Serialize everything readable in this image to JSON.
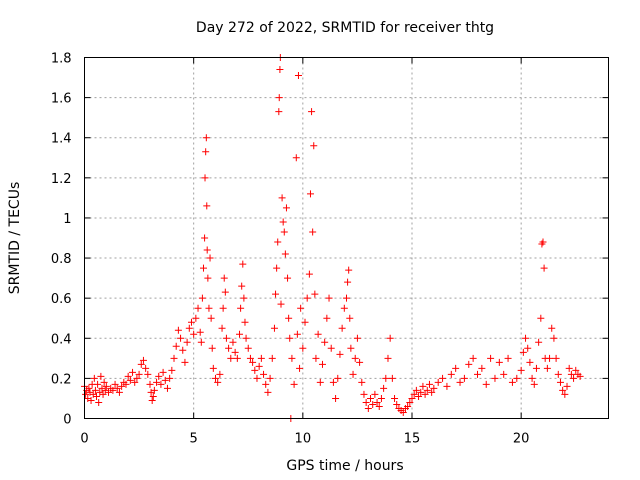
{
  "chart_data": {
    "type": "scatter",
    "title": "Day 272 of 2022, SRMTID for receiver thtg",
    "xlabel": "GPS time / hours",
    "ylabel": "SRMTID / TECUs",
    "xlim": [
      0,
      24
    ],
    "ylim": [
      0,
      1.8
    ],
    "xticks": [
      0,
      5,
      10,
      15,
      20
    ],
    "yticks": [
      0,
      0.2,
      0.4,
      0.6,
      0.8,
      1,
      1.2,
      1.4,
      1.6,
      1.8
    ],
    "xtick_labels": [
      "0",
      "5",
      "10",
      "15",
      "20"
    ],
    "ytick_labels": [
      "0",
      "0.2",
      "0.4",
      "0.6",
      "0.8",
      "1",
      "1.2",
      "1.4",
      "1.6",
      "1.8"
    ],
    "grid": true,
    "marker": "plus",
    "color": "#ff0000",
    "series": [
      {
        "name": "SRMTID",
        "points": [
          [
            0.0,
            0.16
          ],
          [
            0.05,
            0.12
          ],
          [
            0.1,
            0.14
          ],
          [
            0.15,
            0.1
          ],
          [
            0.2,
            0.15
          ],
          [
            0.25,
            0.13
          ],
          [
            0.3,
            0.09
          ],
          [
            0.35,
            0.17
          ],
          [
            0.4,
            0.12
          ],
          [
            0.45,
            0.2
          ],
          [
            0.5,
            0.14
          ],
          [
            0.55,
            0.11
          ],
          [
            0.6,
            0.17
          ],
          [
            0.65,
            0.08
          ],
          [
            0.7,
            0.13
          ],
          [
            0.75,
            0.21
          ],
          [
            0.8,
            0.15
          ],
          [
            0.85,
            0.12
          ],
          [
            0.9,
            0.18
          ],
          [
            0.95,
            0.14
          ],
          [
            1.0,
            0.16
          ],
          [
            1.1,
            0.13
          ],
          [
            1.2,
            0.15
          ],
          [
            1.3,
            0.14
          ],
          [
            1.4,
            0.17
          ],
          [
            1.5,
            0.15
          ],
          [
            1.6,
            0.13
          ],
          [
            1.7,
            0.16
          ],
          [
            1.8,
            0.18
          ],
          [
            1.9,
            0.17
          ],
          [
            2.0,
            0.21
          ],
          [
            2.1,
            0.19
          ],
          [
            2.2,
            0.23
          ],
          [
            2.3,
            0.18
          ],
          [
            2.4,
            0.2
          ],
          [
            2.5,
            0.22
          ],
          [
            2.6,
            0.27
          ],
          [
            2.7,
            0.29
          ],
          [
            2.8,
            0.25
          ],
          [
            2.9,
            0.22
          ],
          [
            3.0,
            0.17
          ],
          [
            3.05,
            0.13
          ],
          [
            3.1,
            0.09
          ],
          [
            3.15,
            0.11
          ],
          [
            3.2,
            0.14
          ],
          [
            3.3,
            0.18
          ],
          [
            3.4,
            0.21
          ],
          [
            3.5,
            0.17
          ],
          [
            3.6,
            0.23
          ],
          [
            3.7,
            0.19
          ],
          [
            3.8,
            0.15
          ],
          [
            3.9,
            0.2
          ],
          [
            4.0,
            0.24
          ],
          [
            4.1,
            0.3
          ],
          [
            4.2,
            0.36
          ],
          [
            4.3,
            0.44
          ],
          [
            4.4,
            0.4
          ],
          [
            4.5,
            0.34
          ],
          [
            4.6,
            0.28
          ],
          [
            4.7,
            0.38
          ],
          [
            4.8,
            0.45
          ],
          [
            4.9,
            0.48
          ],
          [
            5.0,
            0.42
          ],
          [
            5.1,
            0.5
          ],
          [
            5.2,
            0.55
          ],
          [
            5.3,
            0.43
          ],
          [
            5.35,
            0.38
          ],
          [
            5.4,
            0.6
          ],
          [
            5.45,
            0.75
          ],
          [
            5.5,
            0.9
          ],
          [
            5.52,
            1.2
          ],
          [
            5.55,
            1.33
          ],
          [
            5.58,
            1.4
          ],
          [
            5.6,
            1.06
          ],
          [
            5.62,
            0.84
          ],
          [
            5.65,
            0.7
          ],
          [
            5.7,
            0.55
          ],
          [
            5.75,
            0.8
          ],
          [
            5.8,
            0.5
          ],
          [
            5.85,
            0.35
          ],
          [
            5.9,
            0.25
          ],
          [
            6.0,
            0.2
          ],
          [
            6.1,
            0.18
          ],
          [
            6.2,
            0.22
          ],
          [
            6.3,
            0.45
          ],
          [
            6.35,
            0.55
          ],
          [
            6.4,
            0.7
          ],
          [
            6.45,
            0.63
          ],
          [
            6.5,
            0.4
          ],
          [
            6.6,
            0.35
          ],
          [
            6.7,
            0.3
          ],
          [
            6.8,
            0.38
          ],
          [
            6.9,
            0.33
          ],
          [
            7.0,
            0.3
          ],
          [
            7.1,
            0.42
          ],
          [
            7.15,
            0.55
          ],
          [
            7.2,
            0.66
          ],
          [
            7.25,
            0.77
          ],
          [
            7.3,
            0.6
          ],
          [
            7.35,
            0.48
          ],
          [
            7.4,
            0.4
          ],
          [
            7.5,
            0.35
          ],
          [
            7.6,
            0.3
          ],
          [
            7.7,
            0.28
          ],
          [
            7.8,
            0.24
          ],
          [
            7.9,
            0.2
          ],
          [
            8.0,
            0.26
          ],
          [
            8.1,
            0.3
          ],
          [
            8.2,
            0.22
          ],
          [
            8.3,
            0.17
          ],
          [
            8.4,
            0.13
          ],
          [
            8.5,
            0.2
          ],
          [
            8.6,
            0.3
          ],
          [
            8.7,
            0.45
          ],
          [
            8.75,
            0.62
          ],
          [
            8.8,
            0.75
          ],
          [
            8.85,
            0.88
          ],
          [
            8.9,
            1.53
          ],
          [
            8.92,
            1.6
          ],
          [
            8.95,
            1.74
          ],
          [
            8.97,
            1.8
          ],
          [
            9.0,
            0.57
          ],
          [
            9.05,
            1.1
          ],
          [
            9.1,
            0.98
          ],
          [
            9.15,
            0.93
          ],
          [
            9.2,
            0.82
          ],
          [
            9.25,
            1.05
          ],
          [
            9.3,
            0.7
          ],
          [
            9.35,
            0.5
          ],
          [
            9.4,
            0.4
          ],
          [
            9.45,
            0.0
          ],
          [
            9.5,
            0.3
          ],
          [
            9.6,
            0.17
          ],
          [
            9.7,
            1.3
          ],
          [
            9.75,
            0.42
          ],
          [
            9.8,
            1.71
          ],
          [
            9.85,
            0.25
          ],
          [
            9.9,
            0.55
          ],
          [
            10.0,
            0.35
          ],
          [
            10.1,
            0.48
          ],
          [
            10.2,
            0.6
          ],
          [
            10.3,
            0.72
          ],
          [
            10.35,
            1.12
          ],
          [
            10.4,
            1.53
          ],
          [
            10.45,
            0.93
          ],
          [
            10.5,
            1.36
          ],
          [
            10.55,
            0.62
          ],
          [
            10.6,
            0.3
          ],
          [
            10.7,
            0.42
          ],
          [
            10.8,
            0.18
          ],
          [
            10.9,
            0.27
          ],
          [
            11.0,
            0.38
          ],
          [
            11.1,
            0.5
          ],
          [
            11.2,
            0.6
          ],
          [
            11.3,
            0.35
          ],
          [
            11.4,
            0.18
          ],
          [
            11.5,
            0.1
          ],
          [
            11.6,
            0.2
          ],
          [
            11.7,
            0.32
          ],
          [
            11.8,
            0.45
          ],
          [
            11.9,
            0.55
          ],
          [
            12.0,
            0.6
          ],
          [
            12.05,
            0.68
          ],
          [
            12.1,
            0.74
          ],
          [
            12.15,
            0.5
          ],
          [
            12.2,
            0.35
          ],
          [
            12.3,
            0.22
          ],
          [
            12.4,
            0.3
          ],
          [
            12.5,
            0.4
          ],
          [
            12.6,
            0.28
          ],
          [
            12.7,
            0.18
          ],
          [
            12.8,
            0.12
          ],
          [
            12.9,
            0.08
          ],
          [
            13.0,
            0.05
          ],
          [
            13.1,
            0.1
          ],
          [
            13.2,
            0.07
          ],
          [
            13.3,
            0.12
          ],
          [
            13.4,
            0.08
          ],
          [
            13.5,
            0.06
          ],
          [
            13.6,
            0.1
          ],
          [
            13.7,
            0.15
          ],
          [
            13.8,
            0.2
          ],
          [
            13.9,
            0.3
          ],
          [
            14.0,
            0.4
          ],
          [
            14.1,
            0.2
          ],
          [
            14.2,
            0.1
          ],
          [
            14.3,
            0.07
          ],
          [
            14.4,
            0.05
          ],
          [
            14.5,
            0.04
          ],
          [
            14.6,
            0.03
          ],
          [
            14.7,
            0.05
          ],
          [
            14.8,
            0.06
          ],
          [
            14.9,
            0.08
          ],
          [
            15.0,
            0.1
          ],
          [
            15.1,
            0.12
          ],
          [
            15.2,
            0.14
          ],
          [
            15.3,
            0.11
          ],
          [
            15.4,
            0.13
          ],
          [
            15.5,
            0.16
          ],
          [
            15.6,
            0.12
          ],
          [
            15.7,
            0.14
          ],
          [
            15.8,
            0.17
          ],
          [
            15.9,
            0.13
          ],
          [
            16.0,
            0.15
          ],
          [
            16.2,
            0.18
          ],
          [
            16.4,
            0.2
          ],
          [
            16.6,
            0.16
          ],
          [
            16.8,
            0.22
          ],
          [
            17.0,
            0.25
          ],
          [
            17.2,
            0.18
          ],
          [
            17.4,
            0.2
          ],
          [
            17.6,
            0.27
          ],
          [
            17.8,
            0.3
          ],
          [
            18.0,
            0.22
          ],
          [
            18.2,
            0.25
          ],
          [
            18.4,
            0.17
          ],
          [
            18.6,
            0.3
          ],
          [
            18.8,
            0.2
          ],
          [
            19.0,
            0.28
          ],
          [
            19.2,
            0.22
          ],
          [
            19.4,
            0.3
          ],
          [
            19.6,
            0.18
          ],
          [
            19.8,
            0.2
          ],
          [
            20.0,
            0.24
          ],
          [
            20.1,
            0.33
          ],
          [
            20.2,
            0.4
          ],
          [
            20.3,
            0.35
          ],
          [
            20.4,
            0.28
          ],
          [
            20.5,
            0.2
          ],
          [
            20.6,
            0.17
          ],
          [
            20.7,
            0.25
          ],
          [
            20.8,
            0.38
          ],
          [
            20.9,
            0.5
          ],
          [
            20.95,
            0.87
          ],
          [
            21.0,
            0.88
          ],
          [
            21.05,
            0.75
          ],
          [
            21.1,
            0.3
          ],
          [
            21.2,
            0.25
          ],
          [
            21.3,
            0.3
          ],
          [
            21.4,
            0.45
          ],
          [
            21.5,
            0.4
          ],
          [
            21.6,
            0.3
          ],
          [
            21.7,
            0.22
          ],
          [
            21.8,
            0.18
          ],
          [
            21.9,
            0.14
          ],
          [
            22.0,
            0.12
          ],
          [
            22.1,
            0.16
          ],
          [
            22.2,
            0.25
          ],
          [
            22.3,
            0.22
          ],
          [
            22.4,
            0.2
          ],
          [
            22.5,
            0.24
          ],
          [
            22.6,
            0.22
          ],
          [
            22.7,
            0.21
          ]
        ]
      }
    ]
  }
}
